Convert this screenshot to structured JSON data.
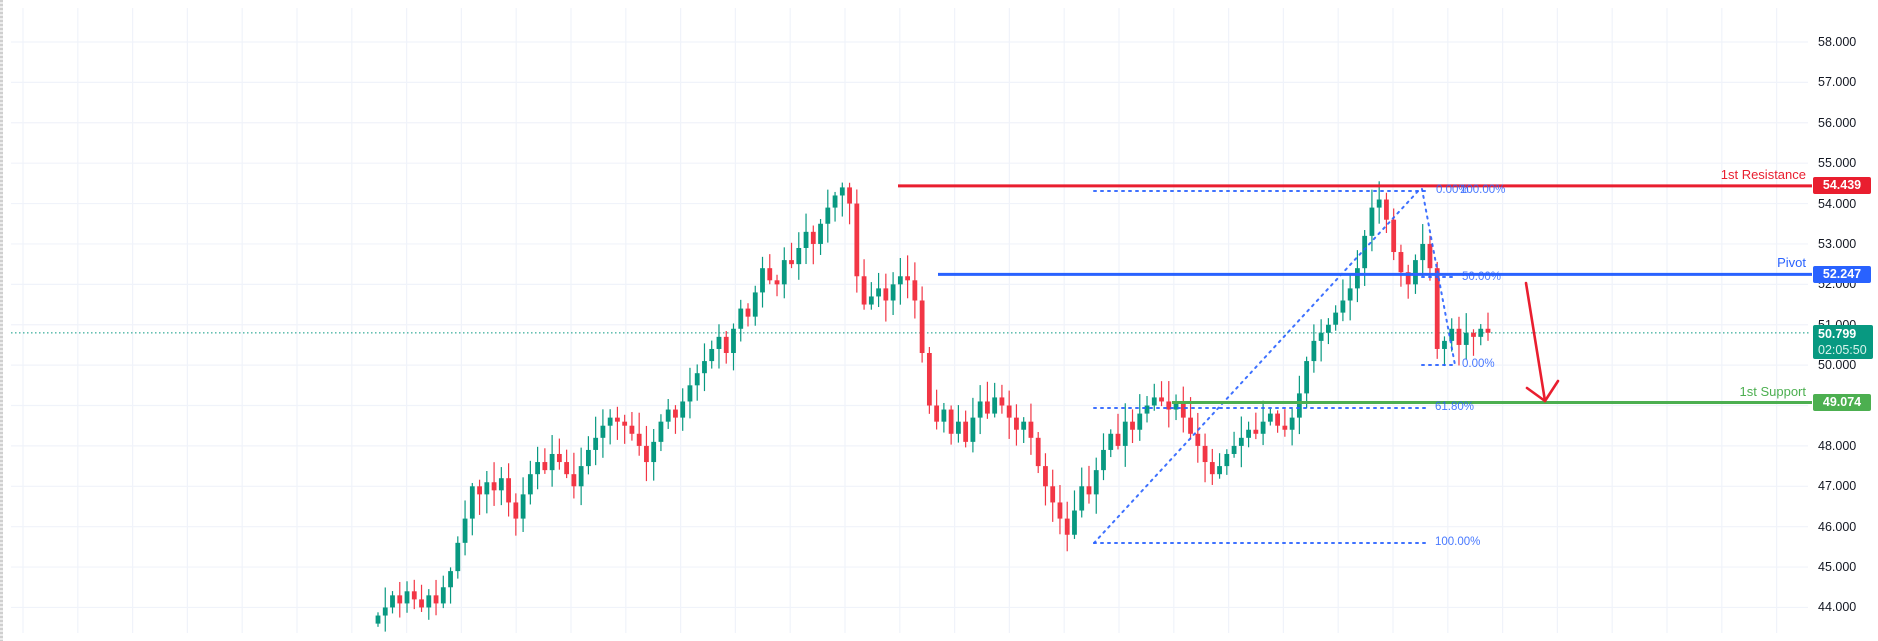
{
  "price_axis": {
    "ticks": [
      "58.000",
      "57.000",
      "56.000",
      "55.000",
      "54.000",
      "53.000",
      "52.000",
      "51.000",
      "50.000",
      "48.000",
      "47.000",
      "46.000",
      "45.000",
      "44.000"
    ],
    "tick_values": [
      58,
      57,
      56,
      55,
      54,
      53,
      52,
      51,
      50,
      48,
      47,
      46,
      45,
      44
    ]
  },
  "levels": {
    "resistance": {
      "title": "1st Resistance",
      "value": "54.439",
      "price": 54.439,
      "color": "#e91e2f"
    },
    "pivot": {
      "title": "Pivot",
      "value": "52.247",
      "price": 52.247,
      "color": "#2962ff"
    },
    "support": {
      "title": "1st Support",
      "value": "49.074",
      "price": 49.074,
      "color": "#4caf50"
    }
  },
  "current_price": {
    "value": "50.799",
    "price": 50.799,
    "countdown": "02:05:50",
    "color": "#089981"
  },
  "fib_labels": {
    "fib1_top": "0.00%",
    "fib1_top_b": "100.00%",
    "fib_mid": "50.00%",
    "fib2_zero": "0.00%",
    "fib_618": "61.80%",
    "fib_100": "100.00%"
  },
  "colors": {
    "up": "#089981",
    "down": "#f23645",
    "grid": "#f0f3fa",
    "fib": "#2962ff",
    "arrow": "#e91e2f"
  },
  "chart_data": {
    "type": "candlestick",
    "title": "",
    "xlabel": "",
    "ylabel": "",
    "ylim": [
      43.6,
      58.3
    ],
    "grid": true,
    "annotations": [
      "1st Resistance 54.439",
      "Pivot 52.247",
      "1st Support 49.074",
      "Fib 0.00% / 100.00%",
      "Fib 50.00%",
      "Fib 0.00%",
      "Fib 61.80%",
      "Fib 100.00%",
      "Bearish arrow from pivot to 1st support"
    ],
    "closes": [
      43.8,
      44.0,
      44.3,
      44.1,
      44.4,
      44.2,
      44.0,
      44.3,
      44.1,
      44.5,
      44.9,
      45.6,
      46.2,
      47.0,
      46.8,
      47.1,
      46.9,
      47.2,
      46.6,
      46.2,
      46.8,
      47.3,
      47.6,
      47.4,
      47.8,
      47.6,
      47.3,
      47.0,
      47.5,
      47.9,
      48.2,
      48.5,
      48.7,
      48.6,
      48.5,
      48.3,
      48.0,
      47.6,
      48.1,
      48.6,
      48.9,
      48.7,
      49.1,
      49.5,
      49.8,
      50.1,
      50.4,
      50.7,
      50.3,
      50.9,
      51.4,
      51.2,
      51.8,
      52.4,
      52.1,
      52.0,
      52.6,
      52.5,
      52.9,
      53.3,
      53.0,
      53.5,
      53.9,
      54.2,
      54.4,
      54.0,
      52.2,
      51.5,
      51.7,
      51.9,
      51.6,
      52.0,
      52.2,
      52.1,
      51.6,
      50.3,
      49.0,
      48.6,
      48.9,
      48.3,
      48.6,
      48.1,
      48.7,
      49.1,
      48.8,
      49.2,
      49.0,
      48.7,
      48.4,
      48.6,
      48.2,
      47.5,
      47.0,
      46.6,
      46.2,
      45.8,
      46.4,
      47.0,
      46.8,
      47.4,
      47.9,
      48.3,
      48.0,
      48.6,
      48.4,
      48.8,
      49.0,
      49.2,
      49.1,
      48.9,
      49.1,
      48.7,
      48.3,
      48.0,
      47.6,
      47.3,
      47.5,
      47.8,
      48.0,
      48.2,
      48.4,
      48.3,
      48.6,
      48.8,
      48.5,
      48.4,
      48.7,
      49.3,
      50.1,
      50.6,
      50.8,
      51.0,
      51.3,
      51.6,
      51.9,
      52.4,
      53.2,
      53.9,
      54.1,
      53.6,
      52.8,
      52.3,
      52.0,
      52.6,
      53.0,
      52.4,
      50.4,
      50.6,
      50.9,
      50.5,
      50.8,
      50.7,
      50.9,
      50.8
    ]
  }
}
